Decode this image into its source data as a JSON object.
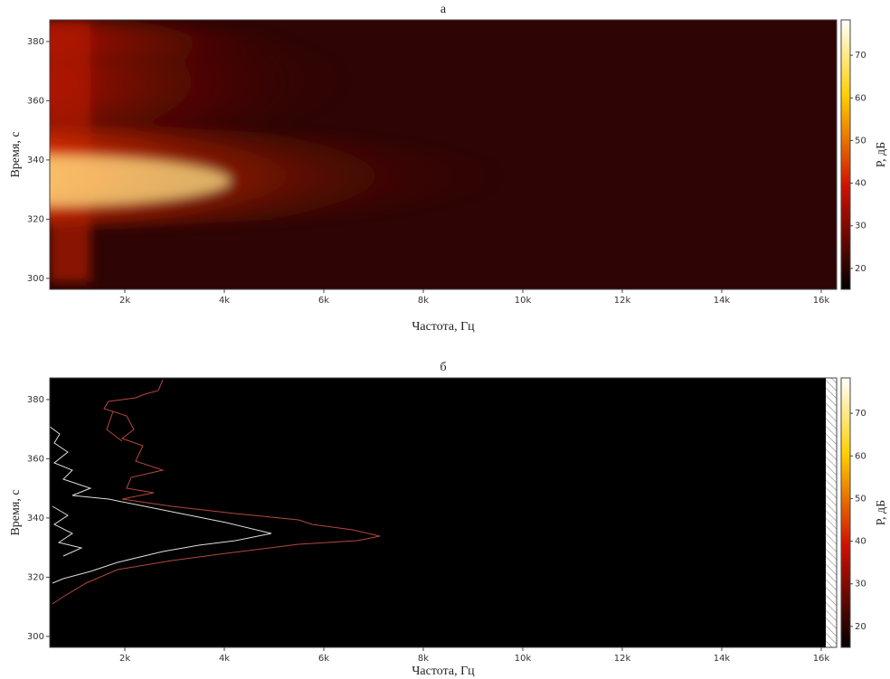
{
  "chart_data": [
    {
      "type": "heatmap",
      "title": "а",
      "x_label": "Частота, Гц",
      "y_label": "Время, с",
      "xlim": [
        490,
        16310
      ],
      "xticks": [
        {
          "value": 2000,
          "label": "2k"
        },
        {
          "value": 4000,
          "label": "4k"
        },
        {
          "value": 6000,
          "label": "6k"
        },
        {
          "value": 8000,
          "label": "8k"
        },
        {
          "value": 10000,
          "label": "10k"
        },
        {
          "value": 12000,
          "label": "12k"
        },
        {
          "value": 14000,
          "label": "14k"
        },
        {
          "value": 16000,
          "label": "16k"
        }
      ],
      "ylim": [
        296.3,
        387.3
      ],
      "yticks": [
        300,
        320,
        340,
        360,
        380
      ],
      "colorbar": {
        "label": "P, дБ",
        "colormap": "hot",
        "lim": [
          15.1,
          78.3
        ],
        "ticks": [
          20,
          30,
          40,
          50,
          60,
          70
        ]
      }
    },
    {
      "type": "contour",
      "title": "б",
      "x_label": "Частота, Гц",
      "y_label": "Время, с",
      "xlim": [
        490,
        16310
      ],
      "xticks": [
        {
          "value": 2000,
          "label": "2k"
        },
        {
          "value": 4000,
          "label": "4k"
        },
        {
          "value": 6000,
          "label": "6k"
        },
        {
          "value": 8000,
          "label": "8k"
        },
        {
          "value": 10000,
          "label": "10k"
        },
        {
          "value": 12000,
          "label": "12k"
        },
        {
          "value": 14000,
          "label": "14k"
        },
        {
          "value": 16000,
          "label": "16k"
        }
      ],
      "ylim": [
        296.3,
        387.3
      ],
      "yticks": [
        300,
        320,
        340,
        360,
        380
      ],
      "colorbar": {
        "label": "P, дБ",
        "colormap": "hot",
        "lim": [
          15.1,
          78.3
        ],
        "ticks": [
          20,
          30,
          40,
          50,
          60,
          70
        ]
      }
    }
  ]
}
